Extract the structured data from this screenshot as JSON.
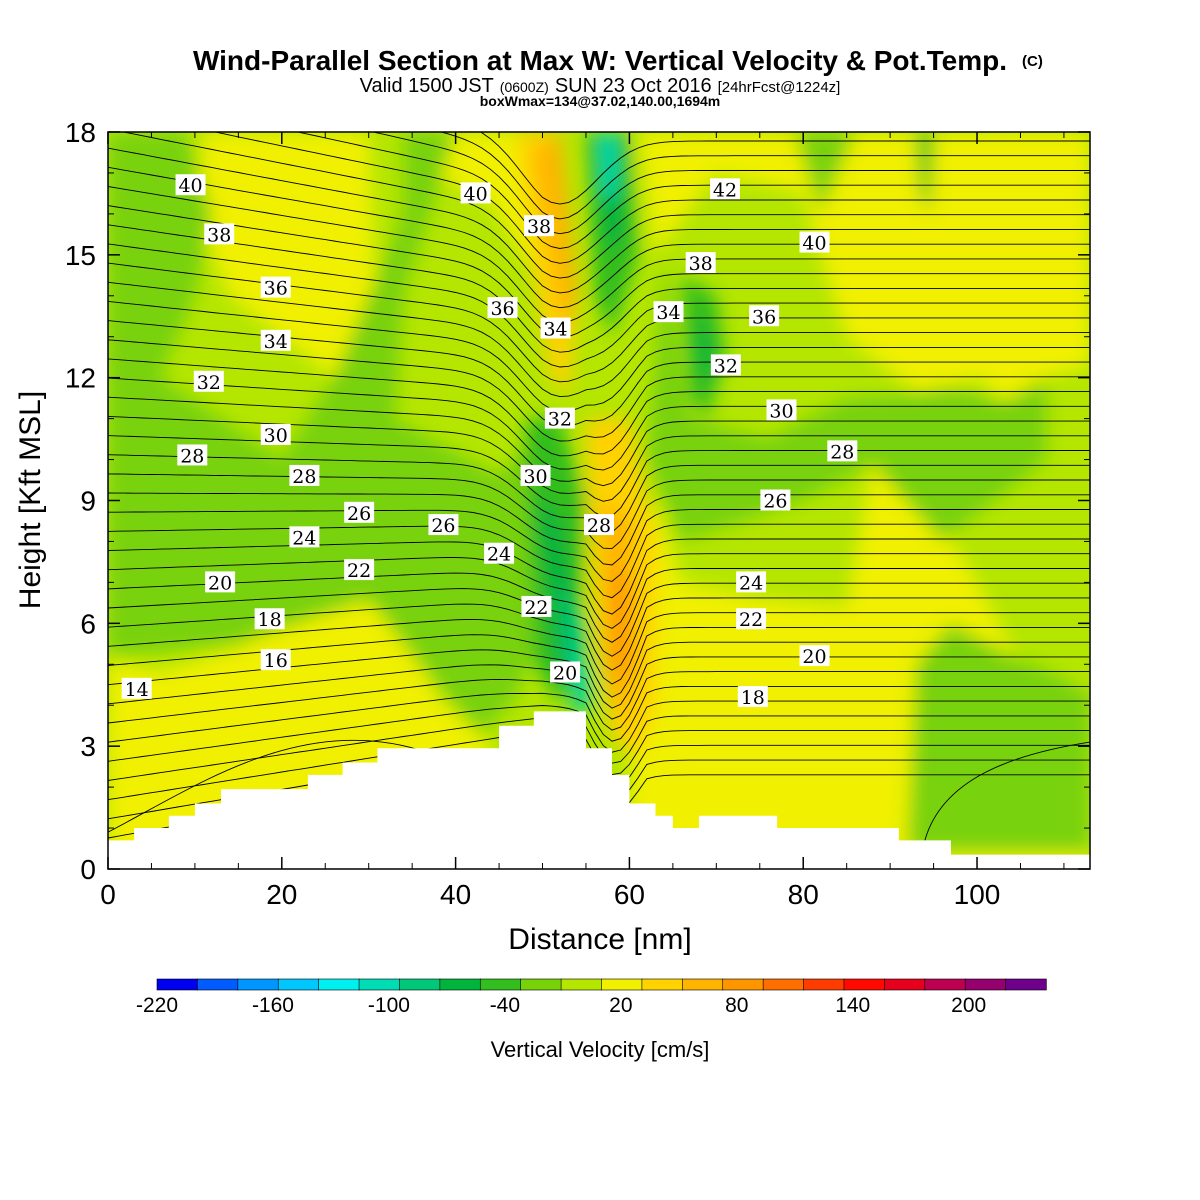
{
  "title": {
    "main": "Wind-Parallel Section at Max W: Vertical Velocity & Pot.Temp.",
    "copyright": "(C)",
    "valid_prefix": "Valid 1500 JST",
    "valid_utc": "(0600Z)",
    "valid_date": "SUN 23 Oct 2016",
    "forecast": "[24hrFcst@1224z]",
    "boxmax": "boxWmax=134@37.02,140.00,1694m"
  },
  "chart_data": {
    "type": "contour-section",
    "xlabel": "Distance [nm]",
    "ylabel": "Height [Kft MSL]",
    "xlim": [
      0,
      113
    ],
    "ylim": [
      0,
      18
    ],
    "x_ticks": [
      0,
      20,
      40,
      60,
      80,
      100
    ],
    "y_ticks": [
      0,
      3,
      6,
      9,
      12,
      15,
      18
    ],
    "colorbar": {
      "label": "Vertical Velocity [cm/s]",
      "tick_labels": [
        "-220",
        "-160",
        "-100",
        "-40",
        "20",
        "80",
        "140",
        "200"
      ],
      "tick_values": [
        -220,
        -160,
        -100,
        -40,
        20,
        80,
        140,
        200
      ],
      "range": [
        -220,
        240
      ],
      "colors": [
        "#0000f0",
        "#005cff",
        "#0096ff",
        "#00c8ff",
        "#00f0f0",
        "#00dcb4",
        "#00c878",
        "#00b43c",
        "#32be1e",
        "#78d20a",
        "#b4e600",
        "#f0f000",
        "#ffd200",
        "#ffb400",
        "#ff9600",
        "#ff6e00",
        "#ff3c00",
        "#ff0a00",
        "#e6001e",
        "#be0050",
        "#96006e",
        "#6e008c"
      ]
    },
    "terrain_kft": [
      [
        0,
        0.7
      ],
      [
        3,
        0.7
      ],
      [
        3,
        1.0
      ],
      [
        7,
        1.0
      ],
      [
        7,
        1.3
      ],
      [
        10,
        1.3
      ],
      [
        10,
        1.6
      ],
      [
        13,
        1.6
      ],
      [
        13,
        1.95
      ],
      [
        23,
        1.95
      ],
      [
        23,
        2.3
      ],
      [
        27,
        2.3
      ],
      [
        27,
        2.6
      ],
      [
        31,
        2.6
      ],
      [
        31,
        2.95
      ],
      [
        45,
        2.95
      ],
      [
        45,
        3.5
      ],
      [
        49,
        3.5
      ],
      [
        49,
        3.85
      ],
      [
        55,
        3.85
      ],
      [
        55,
        2.95
      ],
      [
        58,
        2.95
      ],
      [
        58,
        2.3
      ],
      [
        60,
        2.3
      ],
      [
        60,
        1.6
      ],
      [
        63,
        1.6
      ],
      [
        63,
        1.3
      ],
      [
        65,
        1.3
      ],
      [
        65,
        1.0
      ],
      [
        68,
        1.0
      ],
      [
        68,
        1.3
      ],
      [
        77,
        1.3
      ],
      [
        77,
        1.0
      ],
      [
        91,
        1.0
      ],
      [
        91,
        0.7
      ],
      [
        97,
        0.7
      ],
      [
        97,
        0.35
      ],
      [
        113,
        0.35
      ]
    ],
    "theta_labels": [
      {
        "text": "40",
        "x": 9.5,
        "y": 16.7
      },
      {
        "text": "38",
        "x": 12.8,
        "y": 15.5
      },
      {
        "text": "36",
        "x": 19.3,
        "y": 14.2
      },
      {
        "text": "34",
        "x": 19.3,
        "y": 12.9
      },
      {
        "text": "32",
        "x": 11.6,
        "y": 11.9
      },
      {
        "text": "30",
        "x": 19.3,
        "y": 10.6
      },
      {
        "text": "28",
        "x": 9.7,
        "y": 10.1
      },
      {
        "text": "28",
        "x": 22.6,
        "y": 9.6
      },
      {
        "text": "26",
        "x": 28.9,
        "y": 8.7
      },
      {
        "text": "24",
        "x": 22.6,
        "y": 8.1
      },
      {
        "text": "22",
        "x": 28.9,
        "y": 7.3
      },
      {
        "text": "20",
        "x": 12.9,
        "y": 7.0
      },
      {
        "text": "18",
        "x": 18.6,
        "y": 6.1
      },
      {
        "text": "16",
        "x": 19.3,
        "y": 5.1
      },
      {
        "text": "14",
        "x": 3.3,
        "y": 4.4
      },
      {
        "text": "40",
        "x": 42.3,
        "y": 16.5
      },
      {
        "text": "38",
        "x": 49.6,
        "y": 15.7
      },
      {
        "text": "36",
        "x": 45.4,
        "y": 13.7
      },
      {
        "text": "34",
        "x": 51.5,
        "y": 13.2
      },
      {
        "text": "32",
        "x": 52.0,
        "y": 11.0
      },
      {
        "text": "30",
        "x": 49.2,
        "y": 9.6
      },
      {
        "text": "26",
        "x": 38.6,
        "y": 8.4
      },
      {
        "text": "24",
        "x": 45.0,
        "y": 7.7
      },
      {
        "text": "22",
        "x": 49.3,
        "y": 6.4
      },
      {
        "text": "20",
        "x": 52.6,
        "y": 4.8
      },
      {
        "text": "28",
        "x": 56.5,
        "y": 8.4
      },
      {
        "text": "42",
        "x": 71.0,
        "y": 16.6
      },
      {
        "text": "40",
        "x": 81.3,
        "y": 15.3
      },
      {
        "text": "38",
        "x": 68.2,
        "y": 14.8
      },
      {
        "text": "34",
        "x": 64.5,
        "y": 13.6
      },
      {
        "text": "36",
        "x": 75.5,
        "y": 13.5
      },
      {
        "text": "32",
        "x": 71.1,
        "y": 12.3
      },
      {
        "text": "30",
        "x": 77.5,
        "y": 11.2
      },
      {
        "text": "28",
        "x": 84.5,
        "y": 10.2
      },
      {
        "text": "26",
        "x": 76.8,
        "y": 9.0
      },
      {
        "text": "24",
        "x": 74.0,
        "y": 7.0
      },
      {
        "text": "22",
        "x": 74.0,
        "y": 6.1
      },
      {
        "text": "20",
        "x": 81.3,
        "y": 5.2
      },
      {
        "text": "18",
        "x": 74.2,
        "y": 4.2
      }
    ]
  }
}
